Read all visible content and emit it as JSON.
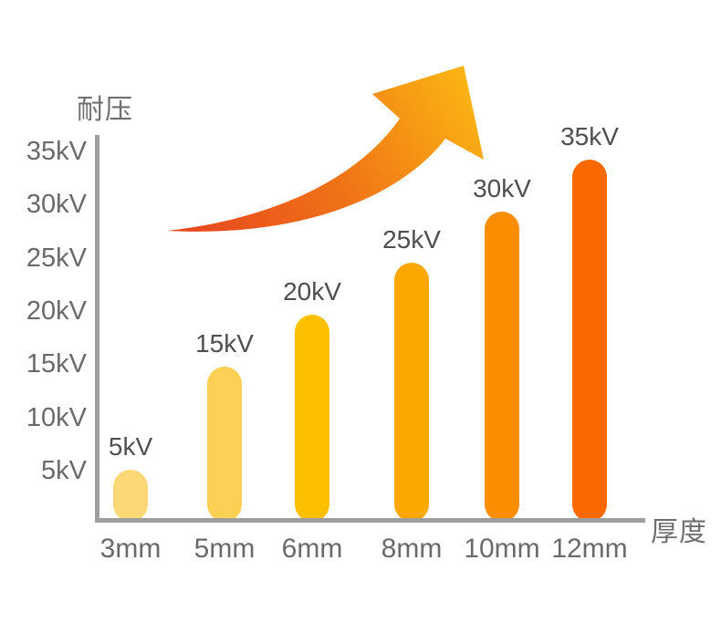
{
  "chart_data": {
    "type": "bar",
    "ylabel": "耐压",
    "xlabel": "厚度",
    "categories": [
      "3mm",
      "5mm",
      "6mm",
      "8mm",
      "10mm",
      "12mm"
    ],
    "values": [
      5,
      15,
      20,
      25,
      30,
      35
    ],
    "value_labels": [
      "5kV",
      "15kV",
      "20kV",
      "25kV",
      "30kV",
      "35kV"
    ],
    "value_unit": "kV",
    "category_unit": "mm",
    "bar_colors": [
      "#FCD876",
      "#FCD054",
      "#FDC000",
      "#FCA800",
      "#FB8D00",
      "#F96900"
    ],
    "yticks": [
      "35kV",
      "30kV",
      "25kV",
      "20kV",
      "15kV",
      "10kV",
      "5kV"
    ],
    "ylim": [
      0,
      37
    ],
    "grid": false,
    "legend": null,
    "axis_color": "#9E9E9E",
    "tick_color": "#6A6A6A",
    "value_label_color": "#4F4F4F",
    "axis_title_color": "#6F6F6F",
    "annotation": "rising-trend-arrow",
    "arrow_gradient": [
      "#E7471E",
      "#F07317",
      "#FBB213"
    ]
  }
}
